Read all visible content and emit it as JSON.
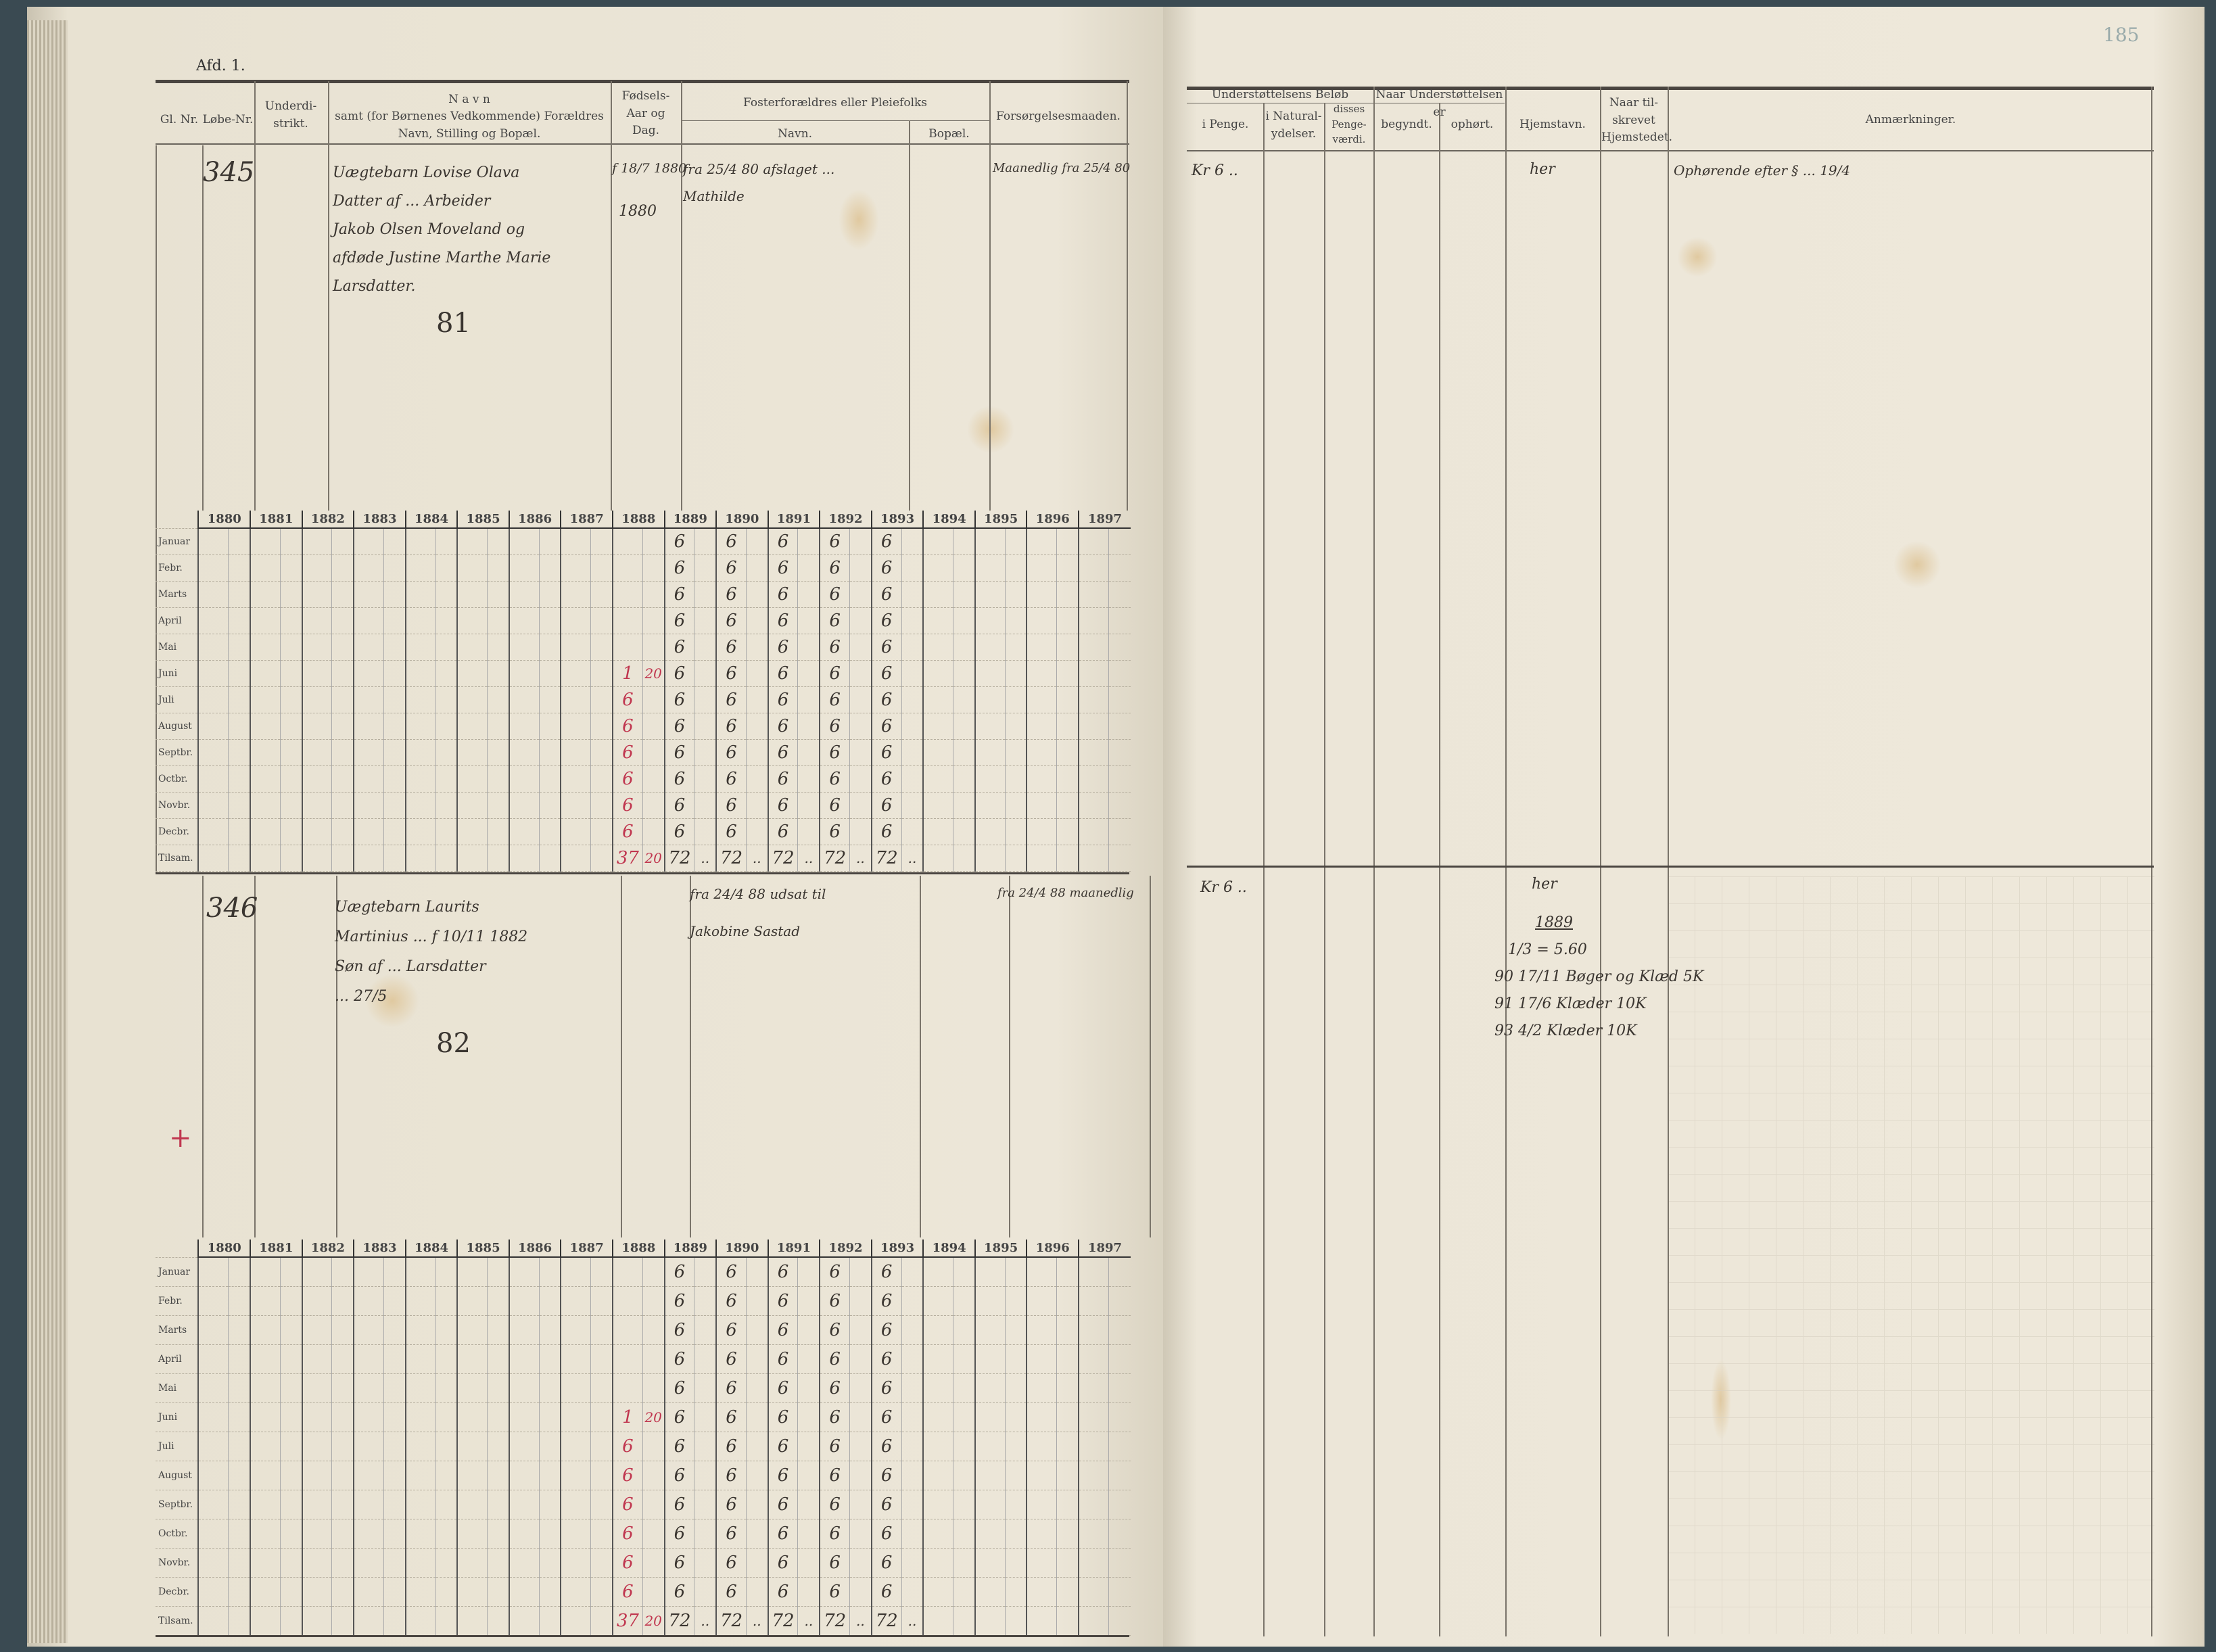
{
  "left_page": {
    "section": "Afd. 1.",
    "headers": {
      "gl_nr": "Gl. Nr.",
      "lobe_nr": "Løbe-Nr.",
      "underdistrikt": "Underdi-strikt.",
      "navn_title": "N a v n",
      "navn_sub": "samt (for Børnenes Vedkommende) Forældres Navn, Stilling og Bopæl.",
      "fodsel": "Fødsels-Aar og Dag.",
      "foster_title": "Fosterforældres eller Pleiefolks",
      "foster_navn": "Navn.",
      "foster_bopael": "Bopæl.",
      "forsorgelse": "Forsørgelsesmaaden."
    }
  },
  "right_page": {
    "page_number": "185",
    "headers": {
      "belob_title": "Understøttelsens Beløb",
      "i_penge": "i Penge.",
      "natural": "i Natural-ydelser.",
      "pengevaerdi": "disses Penge-værdi.",
      "naar_title": "Naar Understøttelsen er",
      "begyndt": "begyndt.",
      "ophort": "ophørt.",
      "hjemstavn": "Hjemstavn.",
      "tilskrevet": "Naar til-skrevet Hjemstedet.",
      "anmaerkninger": "Anmærkninger."
    }
  },
  "entries": [
    {
      "lobe_nr": "345",
      "navn": [
        "Uægtebarn Lovise Olava",
        "Datter af ... Arbeider",
        "Jakob Olsen Moveland og",
        "afdøde Justine Marthe Marie",
        "Larsdatter."
      ],
      "fodsel": "f 18/7 1880",
      "fodsel_note": "1880",
      "foster": [
        "fra 25/4 80 afslaget ... ",
        "Mathilde"
      ],
      "forsorgelse": "Maanedlig fra 25/4 80",
      "ref_number": "81",
      "i_penge": "Kr 6 ..",
      "hjemstavn": "her",
      "anmaerkninger": "Ophørende efter § ... 19/4",
      "grid": {
        "years": [
          "1880",
          "1881",
          "1882",
          "1883",
          "1884",
          "1885",
          "1886",
          "1887",
          "1888",
          "1889",
          "1890",
          "1891",
          "1892",
          "1893",
          "1894",
          "1895",
          "1896",
          "1897"
        ],
        "months": [
          "Januar",
          "Febr.",
          "Marts",
          "April",
          "Mai",
          "Juni",
          "Juli",
          "August",
          "Septbr.",
          "Octbr.",
          "Novbr.",
          "Decbr.",
          "Tilsam."
        ],
        "values": {
          "1888": {
            "ink": "#c0364f",
            "kr": [
              "",
              "",
              "",
              "",
              "",
              "1",
              "6",
              "6",
              "6",
              "6",
              "6",
              "6",
              "37"
            ],
            "ore": [
              "",
              "",
              "",
              "",
              "",
              "20",
              "",
              "",
              "",
              "",
              "",
              "",
              "20"
            ]
          },
          "1889": {
            "ink": "#3a3530",
            "kr": [
              "6",
              "6",
              "6",
              "6",
              "6",
              "6",
              "6",
              "6",
              "6",
              "6",
              "6",
              "6",
              "72"
            ],
            "ore": [
              "",
              "",
              "",
              "",
              "",
              "",
              "",
              "",
              "",
              "",
              "",
              "",
              ".."
            ]
          },
          "1890": {
            "ink": "#3a3530",
            "kr": [
              "6",
              "6",
              "6",
              "6",
              "6",
              "6",
              "6",
              "6",
              "6",
              "6",
              "6",
              "6",
              "72"
            ],
            "ore": [
              "",
              "",
              "",
              "",
              "",
              "",
              "",
              "",
              "",
              "",
              "",
              "",
              ".."
            ]
          },
          "1891": {
            "ink": "#3a3530",
            "kr": [
              "6",
              "6",
              "6",
              "6",
              "6",
              "6",
              "6",
              "6",
              "6",
              "6",
              "6",
              "6",
              "72"
            ],
            "ore": [
              "",
              "",
              "",
              "",
              "",
              "",
              "",
              "",
              "",
              "",
              "",
              "",
              ".."
            ]
          },
          "1892": {
            "ink": "#3a3530",
            "kr": [
              "6",
              "6",
              "6",
              "6",
              "6",
              "6",
              "6",
              "6",
              "6",
              "6",
              "6",
              "6",
              "72"
            ],
            "ore": [
              "",
              "",
              "",
              "",
              "",
              "",
              "",
              "",
              "",
              "",
              "",
              "",
              ".."
            ]
          },
          "1893": {
            "ink": "#3a3530",
            "kr": [
              "6",
              "6",
              "6",
              "6",
              "6",
              "6",
              "6",
              "6",
              "6",
              "6",
              "6",
              "6",
              "72"
            ],
            "ore": [
              "",
              "",
              "",
              "",
              "",
              "",
              "",
              "",
              "",
              "",
              "",
              "",
              ".."
            ]
          }
        }
      }
    },
    {
      "lobe_nr": "346",
      "navn": [
        "Uægtebarn Laurits",
        "Martinius ... f 10/11 1882",
        "Søn af ... Larsdatter",
        "... 27/5"
      ],
      "fodsel": "",
      "fodsel_note": "",
      "foster": [
        "fra 24/4 88 udsat til",
        "Jakobine Sastad"
      ],
      "forsorgelse": "fra 24/4 88 maanedlig",
      "ref_number": "82",
      "mark": "+",
      "i_penge": "Kr 6 ..",
      "hjemstavn": "her",
      "hjemstavn_notes": [
        "1889",
        "1/3 = 5.60",
        "90 17/11 Bøger og Klæd 5K",
        "91 17/6 Klæder 10K",
        "93 4/2 Klæder 10K"
      ],
      "anmaerkninger": "",
      "grid": {
        "years": [
          "1880",
          "1881",
          "1882",
          "1883",
          "1884",
          "1885",
          "1886",
          "1887",
          "1888",
          "1889",
          "1890",
          "1891",
          "1892",
          "1893",
          "1894",
          "1895",
          "1896",
          "1897"
        ],
        "months": [
          "Januar",
          "Febr.",
          "Marts",
          "April",
          "Mai",
          "Juni",
          "Juli",
          "August",
          "Septbr.",
          "Octbr.",
          "Novbr.",
          "Decbr.",
          "Tilsam."
        ],
        "values": {
          "1888": {
            "ink": "#c0364f",
            "kr": [
              "",
              "",
              "",
              "",
              "",
              "1",
              "6",
              "6",
              "6",
              "6",
              "6",
              "6",
              "37"
            ],
            "ore": [
              "",
              "",
              "",
              "",
              "",
              "20",
              "",
              "",
              "",
              "",
              "",
              "",
              "20"
            ]
          },
          "1889": {
            "ink": "#3a3530",
            "kr": [
              "6",
              "6",
              "6",
              "6",
              "6",
              "6",
              "6",
              "6",
              "6",
              "6",
              "6",
              "6",
              "72"
            ],
            "ore": [
              "",
              "",
              "",
              "",
              "",
              "",
              "",
              "",
              "",
              "",
              "",
              "",
              ".."
            ]
          },
          "1890": {
            "ink": "#3a3530",
            "kr": [
              "6",
              "6",
              "6",
              "6",
              "6",
              "6",
              "6",
              "6",
              "6",
              "6",
              "6",
              "6",
              "72"
            ],
            "ore": [
              "",
              "",
              "",
              "",
              "",
              "",
              "",
              "",
              "",
              "",
              "",
              "",
              ".."
            ]
          },
          "1891": {
            "ink": "#3a3530",
            "kr": [
              "6",
              "6",
              "6",
              "6",
              "6",
              "6",
              "6",
              "6",
              "6",
              "6",
              "6",
              "6",
              "72"
            ],
            "ore": [
              "",
              "",
              "",
              "",
              "",
              "",
              "",
              "",
              "",
              "",
              "",
              "",
              ".."
            ]
          },
          "1892": {
            "ink": "#3a3530",
            "kr": [
              "6",
              "6",
              "6",
              "6",
              "6",
              "6",
              "6",
              "6",
              "6",
              "6",
              "6",
              "6",
              "72"
            ],
            "ore": [
              "",
              "",
              "",
              "",
              "",
              "",
              "",
              "",
              "",
              "",
              "",
              "",
              ".."
            ]
          },
          "1893": {
            "ink": "#3a3530",
            "kr": [
              "6",
              "6",
              "6",
              "6",
              "6",
              "6",
              "6",
              "6",
              "6",
              "6",
              "6",
              "6",
              "72"
            ],
            "ore": [
              "",
              "",
              "",
              "",
              "",
              "",
              "",
              "",
              "",
              "",
              "",
              "",
              ".."
            ]
          }
        }
      }
    }
  ]
}
